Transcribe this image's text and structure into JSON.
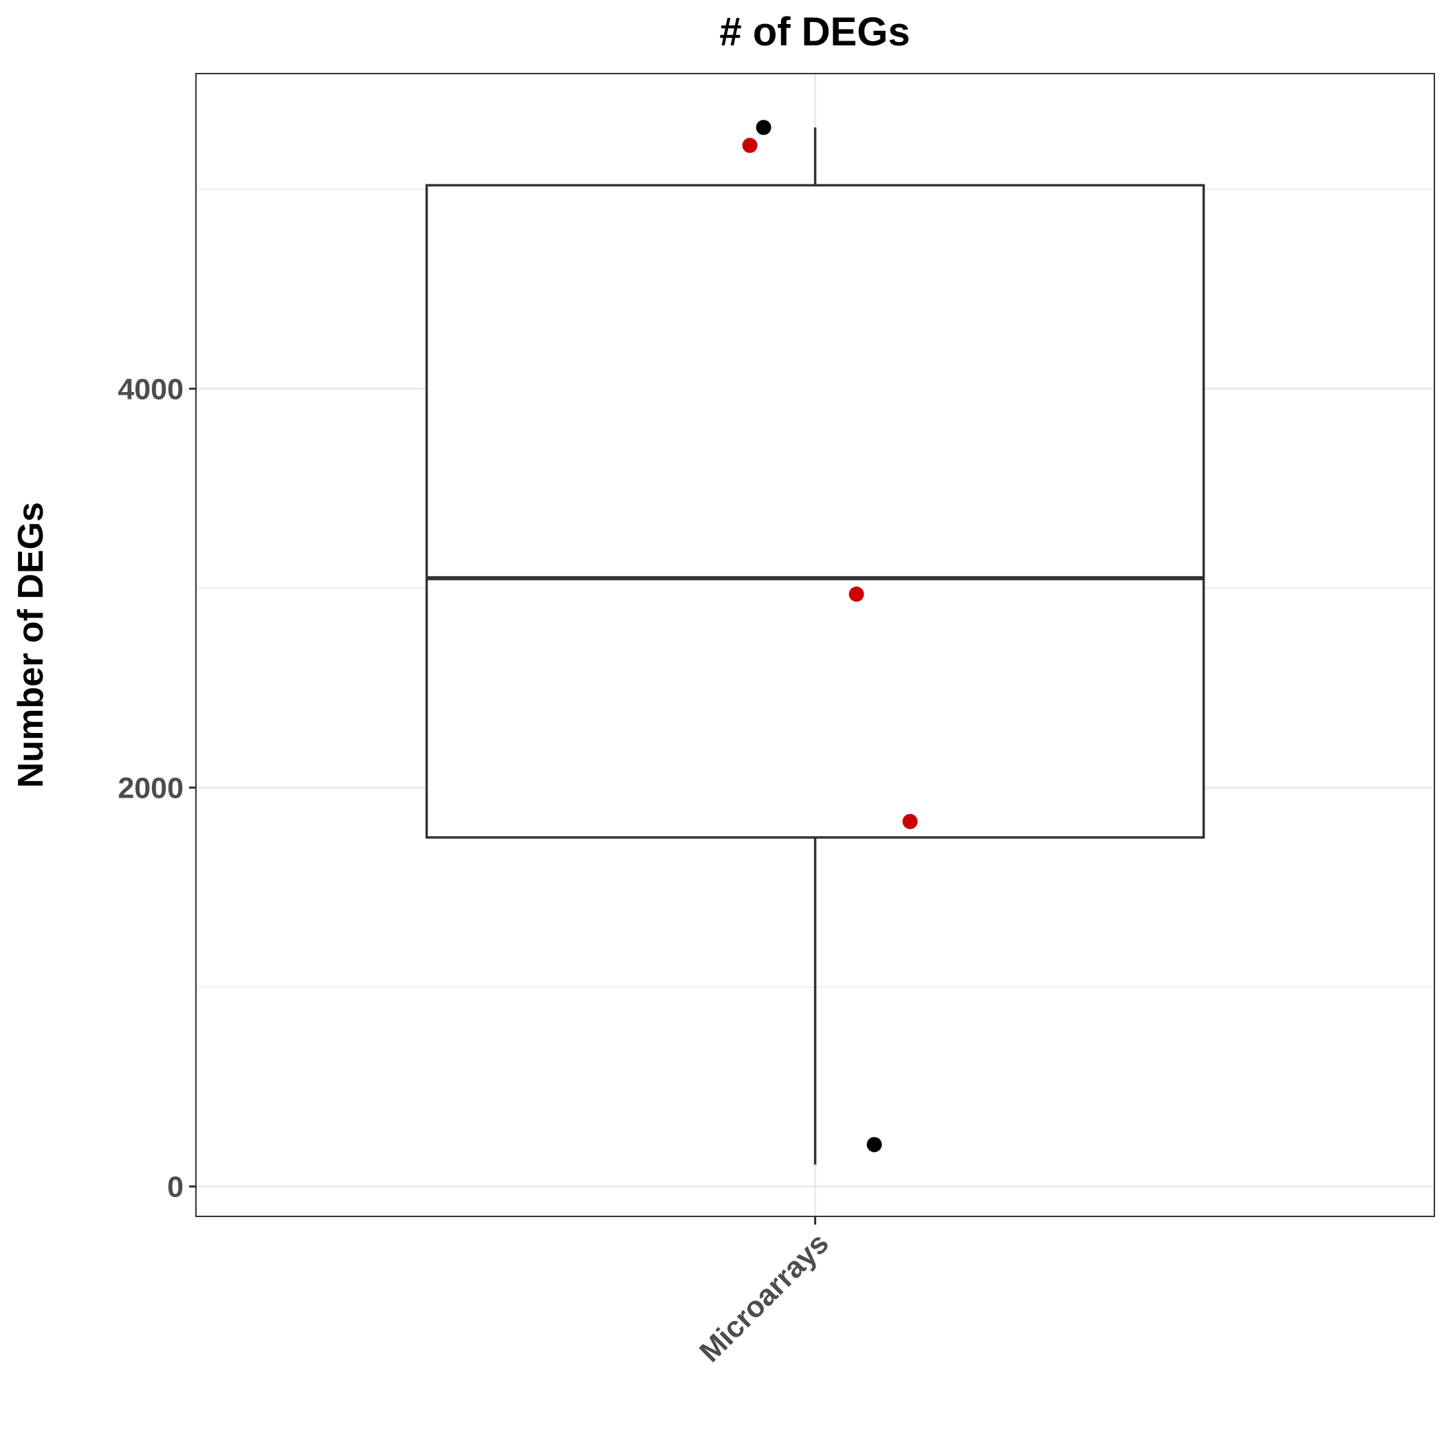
{
  "chart_data": {
    "type": "boxplot",
    "title": "# of DEGs",
    "xlabel": "",
    "ylabel": "Number of DEGs",
    "categories": [
      "Microarrays"
    ],
    "ylim": [
      -150,
      5580
    ],
    "yticks": [
      0,
      2000,
      4000
    ],
    "y_minor_gridlines": [
      1000,
      3000,
      5000
    ],
    "grid": true,
    "box": {
      "category": "Microarrays",
      "whisker_low": 110,
      "q1": 1750,
      "median": 3050,
      "q3": 5020,
      "whisker_high": 5310
    },
    "points": [
      {
        "category": "Microarrays",
        "y": 5220,
        "color": "#cc0000"
      },
      {
        "category": "Microarrays",
        "y": 5310,
        "color": "#000000"
      },
      {
        "category": "Microarrays",
        "y": 2970,
        "color": "#cc0000"
      },
      {
        "category": "Microarrays",
        "y": 1830,
        "color": "#cc0000"
      },
      {
        "category": "Microarrays",
        "y": 210,
        "color": "#000000"
      }
    ]
  }
}
